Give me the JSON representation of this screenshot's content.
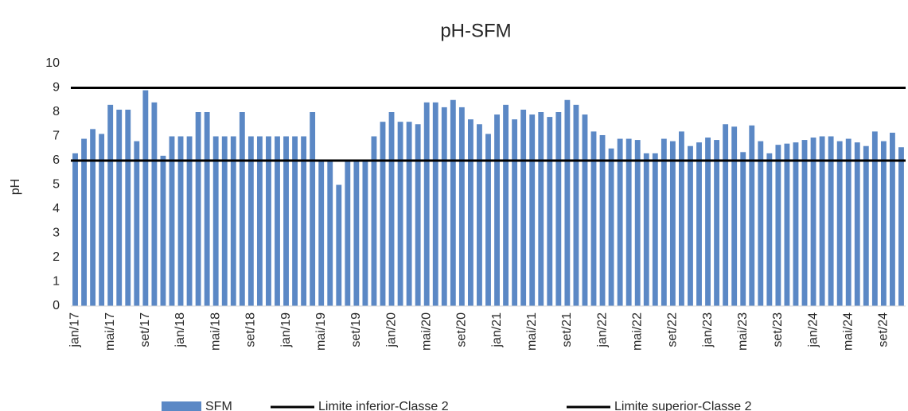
{
  "chart_data": {
    "type": "bar",
    "title": "pH-SFM",
    "y_label": "pH",
    "categories": [
      "jan/17",
      null,
      null,
      null,
      "mai/17",
      null,
      null,
      null,
      "set/17",
      null,
      null,
      null,
      "jan/18",
      null,
      null,
      null,
      "mai/18",
      null,
      null,
      null,
      "set/18",
      null,
      null,
      null,
      "jan/19",
      null,
      null,
      null,
      "mai/19",
      null,
      null,
      null,
      "set/19",
      null,
      null,
      null,
      "jan/20",
      null,
      null,
      null,
      "mai/20",
      null,
      null,
      null,
      "set/20",
      null,
      null,
      null,
      "jan/21",
      null,
      null,
      null,
      "mai/21",
      null,
      null,
      null,
      "set/21",
      null,
      null,
      null,
      "jan/22",
      null,
      null,
      null,
      "mai/22",
      null,
      null,
      null,
      "set/22",
      null,
      null,
      null,
      "jan/23",
      null,
      null,
      null,
      "mai/23",
      null,
      null,
      null,
      "set/23",
      null,
      null,
      null,
      "jan/24",
      null,
      null,
      null,
      "mai/24",
      null,
      null,
      null,
      "set/24",
      null,
      null
    ],
    "series": [
      {
        "name": "SFM",
        "type": "bar",
        "color": "#5b88c5",
        "values": [
          6.3,
          6.9,
          7.3,
          7.1,
          8.3,
          8.1,
          8.1,
          6.8,
          8.9,
          8.4,
          6.2,
          7.0,
          7.0,
          7.0,
          8.0,
          8.0,
          7.0,
          7.0,
          7.0,
          8.0,
          7.0,
          7.0,
          7.0,
          7.0,
          7.0,
          7.0,
          7.0,
          8.0,
          6.0,
          6.0,
          5.0,
          6.0,
          6.0,
          6.0,
          7.0,
          7.6,
          8.0,
          7.6,
          7.6,
          7.5,
          8.4,
          8.4,
          8.2,
          8.5,
          8.2,
          7.7,
          7.5,
          7.1,
          7.9,
          8.3,
          7.7,
          8.1,
          7.9,
          8.0,
          7.8,
          8.0,
          8.5,
          8.3,
          7.9,
          7.2,
          7.05,
          6.5,
          6.9,
          6.9,
          6.85,
          6.3,
          6.3,
          6.9,
          6.8,
          7.2,
          6.6,
          6.75,
          6.95,
          6.85,
          7.5,
          7.4,
          6.35,
          7.45,
          6.8,
          6.3,
          6.65,
          6.7,
          6.75,
          6.85,
          6.95,
          7.0,
          7.0,
          6.8,
          6.9,
          6.75,
          6.6,
          7.2,
          6.8,
          7.15,
          6.55
        ]
      },
      {
        "name": "Limite inferior-Classe 2",
        "type": "line",
        "color": "#000000",
        "values": [
          6,
          6,
          6,
          6,
          6,
          6,
          6,
          6,
          6,
          6,
          6,
          6,
          6,
          6,
          6,
          6,
          6,
          6,
          6,
          6,
          6,
          6,
          6,
          6,
          6,
          6,
          6,
          6,
          6,
          6,
          6,
          6,
          6,
          6,
          6,
          6,
          6,
          6,
          6,
          6,
          6,
          6,
          6,
          6,
          6,
          6,
          6,
          6,
          6,
          6,
          6,
          6,
          6,
          6,
          6,
          6,
          6,
          6,
          6,
          6,
          6,
          6,
          6,
          6,
          6,
          6,
          6,
          6,
          6,
          6,
          6,
          6,
          6,
          6,
          6,
          6,
          6,
          6,
          6,
          6,
          6,
          6,
          6,
          6,
          6,
          6,
          6,
          6,
          6,
          6,
          6,
          6,
          6,
          6,
          6
        ]
      },
      {
        "name": "Limite superior-Classe 2",
        "type": "line",
        "color": "#000000",
        "values": [
          9,
          9,
          9,
          9,
          9,
          9,
          9,
          9,
          9,
          9,
          9,
          9,
          9,
          9,
          9,
          9,
          9,
          9,
          9,
          9,
          9,
          9,
          9,
          9,
          9,
          9,
          9,
          9,
          9,
          9,
          9,
          9,
          9,
          9,
          9,
          9,
          9,
          9,
          9,
          9,
          9,
          9,
          9,
          9,
          9,
          9,
          9,
          9,
          9,
          9,
          9,
          9,
          9,
          9,
          9,
          9,
          9,
          9,
          9,
          9,
          9,
          9,
          9,
          9,
          9,
          9,
          9,
          9,
          9,
          9,
          9,
          9,
          9,
          9,
          9,
          9,
          9,
          9,
          9,
          9,
          9,
          9,
          9,
          9,
          9,
          9,
          9,
          9,
          9,
          9,
          9,
          9,
          9,
          9,
          9
        ]
      }
    ],
    "ylim": [
      0,
      10
    ],
    "yticks": [
      0,
      1,
      2,
      3,
      4,
      5,
      6,
      7,
      8,
      9,
      10
    ],
    "grid": false,
    "legend": "bottom"
  }
}
